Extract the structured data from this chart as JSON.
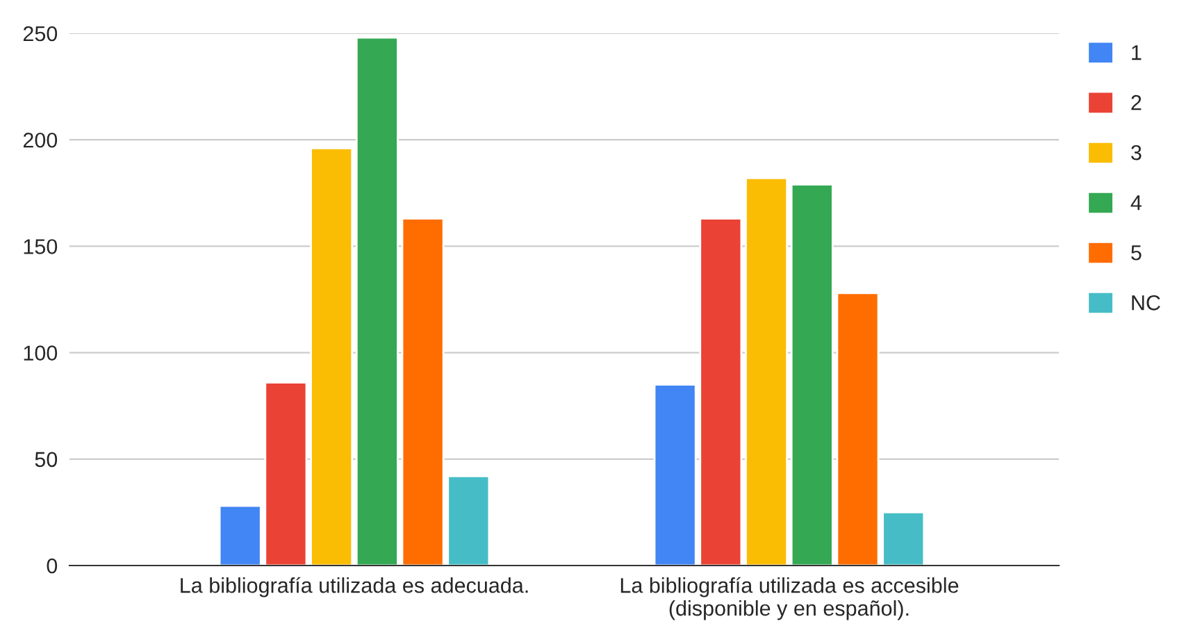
{
  "chart_data": {
    "type": "bar",
    "categories": [
      "La bibliografía utilizada es adecuada.",
      "La bibliografía utilizada es accesible\n(disponible y en español)."
    ],
    "series": [
      {
        "name": "1",
        "color": "#4285f4",
        "values": [
          28,
          85
        ]
      },
      {
        "name": "2",
        "color": "#ea4335",
        "values": [
          86,
          163
        ]
      },
      {
        "name": "3",
        "color": "#fbbc04",
        "values": [
          196,
          182
        ]
      },
      {
        "name": "4",
        "color": "#34a853",
        "values": [
          248,
          179
        ]
      },
      {
        "name": "5",
        "color": "#ff6d01",
        "values": [
          163,
          128
        ]
      },
      {
        "name": "NC",
        "color": "#46bdc6",
        "values": [
          42,
          25
        ]
      }
    ],
    "ylim": [
      0,
      250
    ],
    "yticks": [
      0,
      50,
      100,
      150,
      200,
      250
    ],
    "grid": "y",
    "legend": "right"
  }
}
